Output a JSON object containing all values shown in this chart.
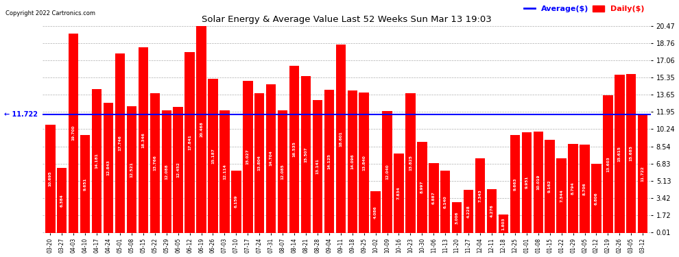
{
  "title": "Solar Energy & Average Value Last 52 Weeks Sun Mar 13 19:03",
  "copyright": "Copyright 2022 Cartronics.com",
  "average_label": "Average($)",
  "daily_label": "Daily($)",
  "average_value": 11.722,
  "bar_color": "#FF0000",
  "average_line_color": "#0000FF",
  "background_color": "#FFFFFF",
  "grid_color": "#999999",
  "ylim": [
    0.0,
    20.47
  ],
  "yticks": [
    0.01,
    1.72,
    3.42,
    5.13,
    6.83,
    8.54,
    10.24,
    11.95,
    13.65,
    15.35,
    17.06,
    18.76,
    20.47
  ],
  "dates": [
    "03-20",
    "03-27",
    "04-03",
    "04-10",
    "04-17",
    "04-24",
    "05-01",
    "05-08",
    "05-15",
    "05-22",
    "05-29",
    "06-05",
    "06-12",
    "06-19",
    "06-26",
    "07-03",
    "07-10",
    "07-17",
    "07-24",
    "07-31",
    "08-07",
    "08-14",
    "08-21",
    "08-28",
    "09-04",
    "09-11",
    "09-18",
    "09-25",
    "10-02",
    "10-09",
    "10-16",
    "10-23",
    "10-30",
    "11-06",
    "11-13",
    "11-20",
    "11-27",
    "12-04",
    "12-11",
    "12-18",
    "12-25",
    "01-01",
    "01-08",
    "01-15",
    "01-22",
    "01-29",
    "02-05",
    "02-12",
    "02-19",
    "02-26",
    "03-05",
    "03-12"
  ],
  "values": [
    10.695,
    6.384,
    19.7,
    9.651,
    14.181,
    12.843,
    17.746,
    12.521,
    18.346,
    13.766,
    12.088,
    12.452,
    17.841,
    20.468,
    15.187,
    12.114,
    6.159,
    15.027,
    13.804,
    14.704,
    12.085,
    16.535,
    15.507,
    13.141,
    14.125,
    18.601,
    14.096,
    13.84,
    4.086,
    12.04,
    7.834,
    13.825,
    8.997,
    6.887,
    6.14,
    3.006,
    4.228,
    7.343,
    4.276,
    1.803,
    9.663,
    9.951,
    10.019,
    9.162,
    7.344,
    8.794,
    8.706,
    6.806,
    13.603,
    15.615,
    15.685,
    11.722
  ]
}
